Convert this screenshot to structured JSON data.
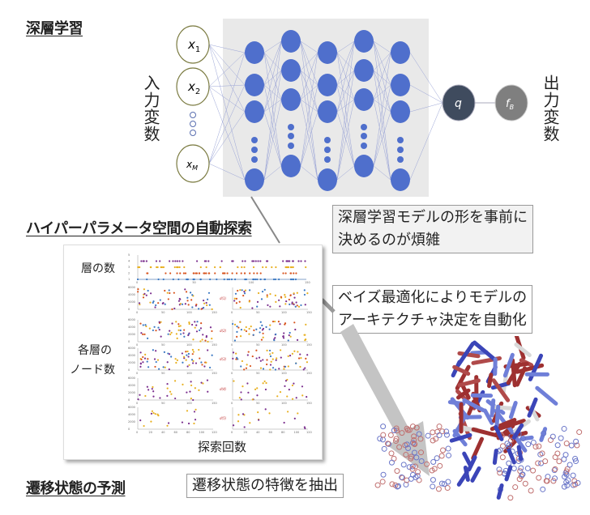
{
  "sections": {
    "deep_learning": "深層学習",
    "hyperparam_search": "ハイパーパラメータ空間の自動探索",
    "ts_prediction": "遷移状態の予測"
  },
  "network": {
    "input_label": "入力変数",
    "output_label": "出力変数",
    "inputs": [
      "x1",
      "x2",
      "xM"
    ],
    "input_subscripts": [
      "1",
      "2",
      "M"
    ],
    "hidden_node": "q",
    "output_node": "f",
    "output_subscript": "B",
    "colors": {
      "hidden": "#4f6fcc",
      "q": "#3f4b5e",
      "fB": "#7f7f7f",
      "panel": "#e9e9e9"
    }
  },
  "notes": {
    "model_shape": [
      "深層学習モデルの形を事前に",
      "決めるのが煩雑"
    ],
    "bayes_opt": [
      "ベイズ最適化によりモデルの",
      "アーキテクチャ決定を自動化"
    ],
    "ts_features": "遷移状態の特徴を抽出"
  },
  "plots": {
    "layers_label": "層の数",
    "nodes_label": [
      "各層の",
      "ノード数"
    ],
    "xlabel": "探索回数",
    "series_colors": [
      "#3a78c3",
      "#d8541e",
      "#e8b020",
      "#7b2f8e"
    ],
    "y_ticks": [
      "0",
      "2000",
      "4000",
      "6000"
    ],
    "x_ticks": [
      "0",
      "50",
      "100",
      "150"
    ],
    "x_ticks_last": [
      "0",
      "20",
      "40",
      "60",
      "80",
      "100",
      "120"
    ],
    "layer_ticks": [
      "1",
      "2",
      "3",
      "4",
      "5"
    ],
    "right_ylabels": [
      "d(1)",
      "d(2)",
      "d(3)",
      "d(4)",
      "d(5)"
    ]
  },
  "molecule_colors": [
    "#3b45b8",
    "#b04a4a",
    "#d8d8d8",
    "#6f7fd8",
    "#9e3030"
  ]
}
